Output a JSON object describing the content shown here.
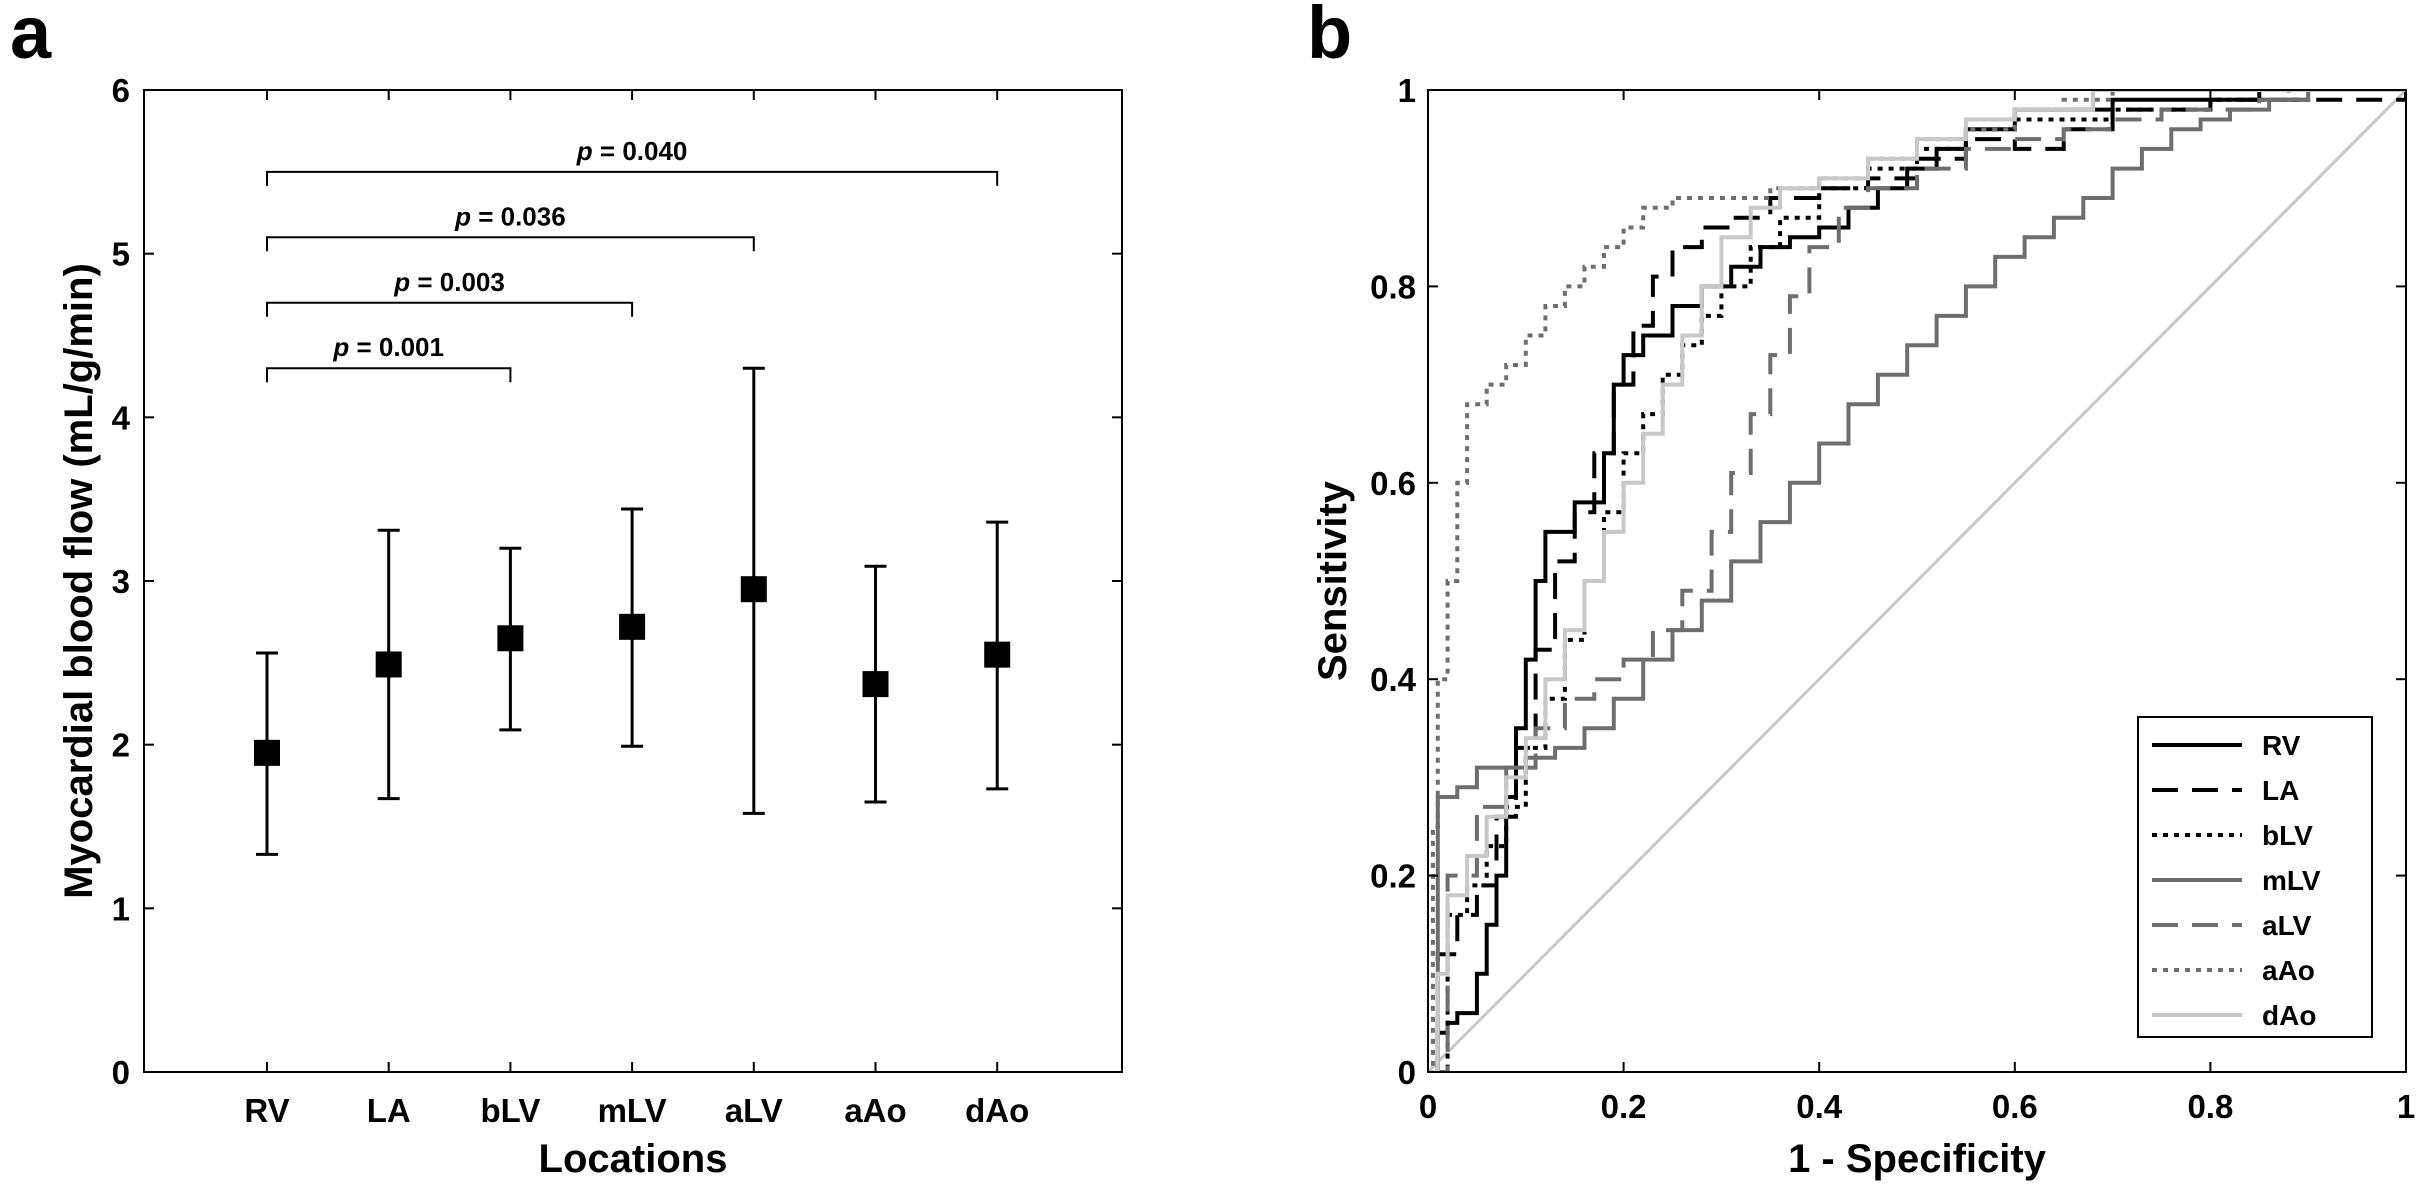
{
  "chart_data": [
    {
      "panel_label": "a",
      "type": "errorbar",
      "title": "",
      "xlabel": "Locations",
      "ylabel": "Myocardial blood flow (mL/g/min)",
      "ylim": [
        0,
        6
      ],
      "yticks": [
        "0",
        "1",
        "2",
        "3",
        "4",
        "5",
        "6"
      ],
      "grid": false,
      "categories": [
        "RV",
        "LA",
        "bLV",
        "mLV",
        "aLV",
        "aAo",
        "dAo"
      ],
      "values": [
        1.95,
        2.49,
        2.65,
        2.72,
        2.95,
        2.37,
        2.55
      ],
      "lower": [
        1.33,
        1.67,
        2.09,
        1.99,
        1.58,
        1.65,
        1.73
      ],
      "upper": [
        2.56,
        3.31,
        3.2,
        3.44,
        4.3,
        3.09,
        3.36
      ],
      "significance": [
        {
          "p_prefix": "p",
          "p_value": " = 0.001",
          "from": "RV",
          "to": "bLV",
          "level": 4.3
        },
        {
          "p_prefix": "p",
          "p_value": " = 0.003",
          "from": "RV",
          "to": "mLV",
          "level": 4.7
        },
        {
          "p_prefix": "p",
          "p_value": " = 0.036",
          "from": "RV",
          "to": "aLV",
          "level": 5.1
        },
        {
          "p_prefix": "p",
          "p_value": " = 0.040",
          "from": "RV",
          "to": "dAo",
          "level": 5.5
        }
      ]
    },
    {
      "panel_label": "b",
      "type": "line",
      "title": "",
      "xlabel": "1 - Specificity",
      "ylabel": "Sensitivity",
      "xlim": [
        0,
        1
      ],
      "ylim": [
        0,
        1
      ],
      "xticks": [
        "0",
        "0.2",
        "0.4",
        "0.6",
        "0.8",
        "1"
      ],
      "yticks": [
        "0",
        "0.2",
        "0.4",
        "0.6",
        "0.8",
        "1"
      ],
      "grid": false,
      "legend_position": "bottom-right",
      "reference_line": {
        "x": [
          0,
          1
        ],
        "y": [
          0,
          1
        ],
        "color": "#c8c8c8"
      },
      "series": [
        {
          "name": "RV",
          "color": "#000000",
          "dash": "solid",
          "x": [
            0,
            0.01,
            0.02,
            0.03,
            0.05,
            0.06,
            0.07,
            0.08,
            0.09,
            0.1,
            0.11,
            0.12,
            0.13,
            0.15,
            0.17,
            0.18,
            0.19,
            0.2,
            0.22,
            0.25,
            0.28,
            0.31,
            0.34,
            0.37,
            0.4,
            0.43,
            0.46,
            0.49,
            0.52,
            0.55,
            0.6,
            0.7,
            0.85,
            1.0
          ],
          "y": [
            0,
            0.04,
            0.05,
            0.06,
            0.1,
            0.15,
            0.2,
            0.28,
            0.35,
            0.42,
            0.5,
            0.55,
            0.55,
            0.58,
            0.58,
            0.63,
            0.7,
            0.73,
            0.75,
            0.78,
            0.8,
            0.82,
            0.84,
            0.85,
            0.86,
            0.88,
            0.9,
            0.92,
            0.94,
            0.96,
            0.98,
            0.99,
            1.0,
            1.0
          ]
        },
        {
          "name": "LA",
          "color": "#000000",
          "dash": "long",
          "x": [
            0,
            0.01,
            0.03,
            0.05,
            0.07,
            0.09,
            0.11,
            0.13,
            0.15,
            0.17,
            0.19,
            0.21,
            0.23,
            0.25,
            0.28,
            0.31,
            0.35,
            0.4,
            0.45,
            0.5,
            0.55,
            0.6,
            0.65,
            0.7,
            0.8,
            1.0
          ],
          "y": [
            0,
            0.12,
            0.16,
            0.19,
            0.26,
            0.33,
            0.43,
            0.52,
            0.57,
            0.63,
            0.7,
            0.76,
            0.81,
            0.84,
            0.86,
            0.87,
            0.89,
            0.9,
            0.91,
            0.93,
            0.95,
            0.94,
            0.96,
            0.98,
            0.99,
            1.0
          ]
        },
        {
          "name": "bLV",
          "color": "#000000",
          "dash": "dot",
          "x": [
            0,
            0.02,
            0.04,
            0.06,
            0.08,
            0.1,
            0.12,
            0.14,
            0.16,
            0.18,
            0.2,
            0.22,
            0.24,
            0.26,
            0.28,
            0.3,
            0.33,
            0.36,
            0.4,
            0.45,
            0.5,
            0.55,
            0.6,
            0.7,
            0.8,
            0.9,
            1.0
          ],
          "y": [
            0,
            0.16,
            0.19,
            0.23,
            0.27,
            0.33,
            0.38,
            0.44,
            0.5,
            0.57,
            0.63,
            0.67,
            0.71,
            0.74,
            0.77,
            0.8,
            0.84,
            0.87,
            0.9,
            0.92,
            0.94,
            0.96,
            0.97,
            0.98,
            0.99,
            1.0,
            1.0
          ]
        },
        {
          "name": "mLV",
          "color": "#6e6e6e",
          "dash": "solid",
          "x": [
            0,
            0.01,
            0.03,
            0.05,
            0.07,
            0.1,
            0.13,
            0.16,
            0.19,
            0.22,
            0.25,
            0.28,
            0.31,
            0.34,
            0.37,
            0.4,
            0.43,
            0.46,
            0.49,
            0.52,
            0.55,
            0.58,
            0.61,
            0.64,
            0.67,
            0.7,
            0.73,
            0.76,
            0.79,
            0.82,
            0.86,
            0.9,
            1.0
          ],
          "y": [
            0,
            0.28,
            0.29,
            0.31,
            0.31,
            0.32,
            0.33,
            0.35,
            0.38,
            0.42,
            0.45,
            0.48,
            0.52,
            0.56,
            0.6,
            0.64,
            0.68,
            0.71,
            0.74,
            0.77,
            0.8,
            0.83,
            0.85,
            0.87,
            0.89,
            0.92,
            0.94,
            0.96,
            0.97,
            0.98,
            0.99,
            1.0,
            1.0
          ]
        },
        {
          "name": "aLV",
          "color": "#6e6e6e",
          "dash": "long",
          "x": [
            0,
            0.02,
            0.05,
            0.08,
            0.11,
            0.14,
            0.17,
            0.2,
            0.23,
            0.26,
            0.29,
            0.31,
            0.33,
            0.35,
            0.37,
            0.39,
            0.42,
            0.45,
            0.5,
            0.55,
            0.6,
            0.65,
            0.7,
            0.75,
            0.8,
            0.85,
            0.88,
            1.0
          ],
          "y": [
            0,
            0.2,
            0.27,
            0.31,
            0.35,
            0.38,
            0.4,
            0.42,
            0.45,
            0.49,
            0.55,
            0.61,
            0.67,
            0.73,
            0.79,
            0.84,
            0.88,
            0.9,
            0.92,
            0.94,
            0.95,
            0.96,
            0.97,
            0.98,
            0.98,
            0.99,
            1.0,
            1.0
          ]
        },
        {
          "name": "aAo",
          "color": "#6e6e6e",
          "dash": "dot",
          "x": [
            0,
            0.005,
            0.01,
            0.02,
            0.03,
            0.04,
            0.06,
            0.08,
            0.1,
            0.12,
            0.14,
            0.16,
            0.18,
            0.2,
            0.22,
            0.25,
            0.3,
            0.35,
            0.4,
            0.45,
            0.5,
            0.55,
            0.6,
            0.65,
            0.7,
            0.8,
            1.0
          ],
          "y": [
            0,
            0.25,
            0.4,
            0.5,
            0.6,
            0.68,
            0.7,
            0.72,
            0.75,
            0.78,
            0.8,
            0.82,
            0.84,
            0.86,
            0.88,
            0.89,
            0.89,
            0.9,
            0.91,
            0.93,
            0.95,
            0.96,
            0.98,
            0.99,
            1.0,
            1.0,
            1.0
          ]
        },
        {
          "name": "dAo",
          "color": "#c8c8c8",
          "dash": "solid",
          "x": [
            0,
            0.01,
            0.02,
            0.04,
            0.06,
            0.08,
            0.1,
            0.12,
            0.14,
            0.16,
            0.18,
            0.2,
            0.22,
            0.24,
            0.26,
            0.28,
            0.3,
            0.33,
            0.36,
            0.4,
            0.45,
            0.5,
            0.55,
            0.6,
            0.68,
            0.8,
            1.0
          ],
          "y": [
            0,
            0.1,
            0.18,
            0.22,
            0.26,
            0.3,
            0.34,
            0.4,
            0.45,
            0.5,
            0.55,
            0.6,
            0.65,
            0.7,
            0.75,
            0.8,
            0.85,
            0.88,
            0.9,
            0.91,
            0.93,
            0.95,
            0.97,
            0.98,
            1.0,
            1.0,
            1.0
          ]
        }
      ]
    }
  ]
}
